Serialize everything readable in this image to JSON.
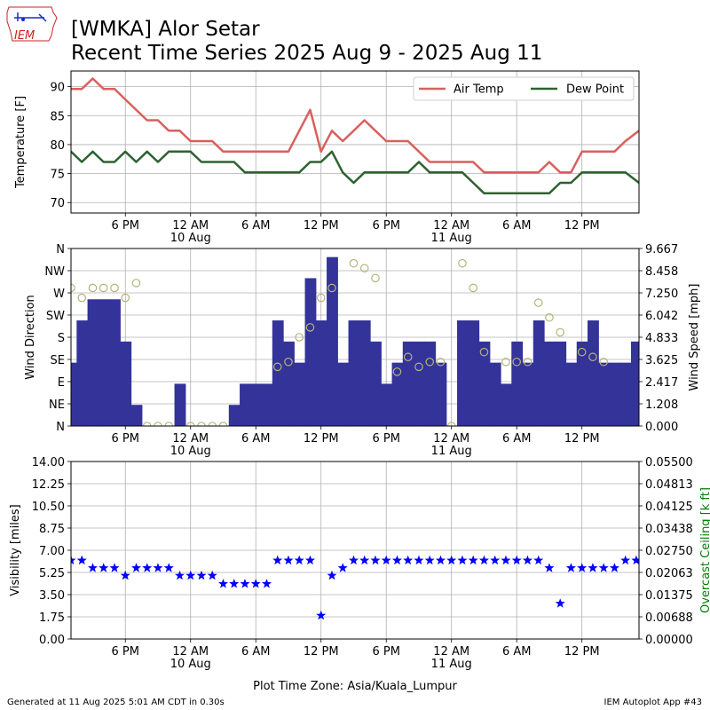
{
  "header": {
    "title_line1": "[WMKA] Alor Setar",
    "title_line2": "Recent Time Series 2025 Aug 9 - 2025 Aug 11",
    "logo_text": "IEM"
  },
  "footer": {
    "generated": "Generated at 11 Aug 2025 5:01 AM CDT in 0.30s",
    "app": "IEM Autoplot App #43",
    "timezone": "Plot Time Zone: Asia/Kuala_Lumpur"
  },
  "colors": {
    "air_temp": "#d9605e",
    "dew_point": "#2e6230",
    "wind_bar": "#333399",
    "wind_dir_marker": "#b4b47a",
    "visibility": "#0000ff",
    "ceiling_label": "#008000",
    "grid": "#b0b0b0"
  },
  "time_axis": {
    "xlim": [
      0,
      52.25
    ],
    "ticks": [
      {
        "t": 5,
        "label": "6 PM",
        "sub": ""
      },
      {
        "t": 11,
        "label": "12 AM",
        "sub": "10 Aug"
      },
      {
        "t": 17,
        "label": "6 AM",
        "sub": ""
      },
      {
        "t": 23,
        "label": "12 PM",
        "sub": ""
      },
      {
        "t": 29,
        "label": "6 PM",
        "sub": ""
      },
      {
        "t": 35,
        "label": "12 AM",
        "sub": "11 Aug"
      },
      {
        "t": 41,
        "label": "6 AM",
        "sub": ""
      },
      {
        "t": 47,
        "label": "12 PM",
        "sub": ""
      }
    ]
  },
  "chart_data": [
    {
      "type": "line",
      "ylabel": "Temperature [F]",
      "ylim": [
        68.2,
        92.7
      ],
      "yticks": [
        70,
        75,
        80,
        85,
        90
      ],
      "grid": true,
      "legend_position": "top-right",
      "series": [
        {
          "name": "Air Temp",
          "x": [
            0,
            1,
            2,
            3,
            4,
            5,
            6,
            7,
            8,
            9,
            10,
            11,
            12,
            13,
            14,
            15,
            16,
            17,
            18,
            19,
            20,
            21,
            22,
            23,
            24,
            25,
            26,
            27,
            28,
            29,
            30,
            31,
            32,
            33,
            34,
            35,
            36,
            37,
            38,
            39,
            40,
            41,
            42,
            43,
            44,
            45,
            46,
            47,
            48,
            49,
            50,
            51,
            52.25
          ],
          "y": [
            89.6,
            89.6,
            91.4,
            89.6,
            89.6,
            87.8,
            86,
            84.2,
            84.2,
            82.4,
            82.4,
            80.6,
            80.6,
            80.6,
            78.8,
            78.8,
            78.8,
            78.8,
            78.8,
            78.8,
            78.8,
            82.4,
            86,
            78.8,
            82.4,
            80.6,
            82.4,
            84.2,
            82.4,
            80.6,
            80.6,
            80.6,
            78.8,
            77,
            77,
            77,
            77,
            77,
            75.2,
            75.2,
            75.2,
            75.2,
            75.2,
            75.2,
            77,
            75.2,
            75.2,
            78.8,
            78.8,
            78.8,
            78.8,
            80.6,
            82.4
          ]
        },
        {
          "name": "Dew Point",
          "x": [
            0,
            1,
            2,
            3,
            4,
            5,
            6,
            7,
            8,
            9,
            10,
            11,
            12,
            13,
            14,
            15,
            16,
            17,
            18,
            19,
            20,
            21,
            22,
            23,
            24,
            25,
            26,
            27,
            28,
            29,
            30,
            31,
            32,
            33,
            34,
            35,
            36,
            37,
            38,
            39,
            40,
            41,
            42,
            43,
            44,
            45,
            46,
            47,
            48,
            49,
            50,
            51,
            52.25
          ],
          "y": [
            78.8,
            77,
            78.8,
            77,
            77,
            78.8,
            77,
            78.8,
            77,
            78.8,
            78.8,
            78.8,
            77,
            77,
            77,
            77,
            75.2,
            75.2,
            75.2,
            75.2,
            75.2,
            75.2,
            77,
            77,
            78.8,
            75.2,
            73.4,
            75.2,
            75.2,
            75.2,
            75.2,
            75.2,
            77,
            75.2,
            75.2,
            75.2,
            75.2,
            73.4,
            71.6,
            71.6,
            71.6,
            71.6,
            71.6,
            71.6,
            71.6,
            73.4,
            73.4,
            75.2,
            75.2,
            75.2,
            75.2,
            75.2,
            73.4
          ]
        }
      ]
    },
    {
      "type": "bar",
      "ylabel": "Wind Direction",
      "ylabel_right": "Wind Speed [mph]",
      "ylim_dir": [
        0,
        360
      ],
      "yticks_dir": [
        {
          "v": 0,
          "label": "N"
        },
        {
          "v": 45,
          "label": "NE"
        },
        {
          "v": 90,
          "label": "E"
        },
        {
          "v": 135,
          "label": "SE"
        },
        {
          "v": 180,
          "label": "S"
        },
        {
          "v": 225,
          "label": "SW"
        },
        {
          "v": 270,
          "label": "W"
        },
        {
          "v": 315,
          "label": "NW"
        },
        {
          "v": 360,
          "label": "N"
        }
      ],
      "ylim_speed": [
        0,
        9.667
      ],
      "yticks_speed": [
        "0.000",
        "1.208",
        "2.417",
        "3.625",
        "4.833",
        "6.042",
        "7.250",
        "8.458",
        "9.667"
      ],
      "grid": true,
      "wind_speed": {
        "name": "Wind Speed",
        "x": [
          0,
          1,
          2,
          3,
          4,
          5,
          6,
          7,
          8,
          9,
          10,
          11,
          12,
          13,
          14,
          15,
          16,
          17,
          18,
          19,
          20,
          21,
          22,
          23,
          24,
          25,
          26,
          27,
          28,
          29,
          30,
          31,
          32,
          33,
          34,
          35,
          36,
          37,
          38,
          39,
          40,
          41,
          42,
          43,
          44,
          45,
          46,
          47,
          48,
          49,
          50,
          51,
          52
        ],
        "values": [
          3.45,
          5.75,
          6.9,
          6.9,
          6.9,
          4.6,
          1.15,
          0,
          0,
          0,
          2.3,
          0,
          0,
          0,
          0,
          1.15,
          2.3,
          2.3,
          2.3,
          5.75,
          4.6,
          3.45,
          8.05,
          5.75,
          9.2,
          3.45,
          5.75,
          5.75,
          4.6,
          2.3,
          3.45,
          4.6,
          4.6,
          4.6,
          3.45,
          0,
          5.75,
          5.75,
          4.6,
          3.45,
          2.3,
          4.6,
          3.45,
          5.75,
          4.6,
          4.6,
          3.45,
          4.6,
          5.75,
          3.45,
          3.45,
          3.45,
          4.6
        ]
      },
      "wind_direction": {
        "name": "Wind Direction",
        "x": [
          0,
          1,
          2,
          3,
          4,
          5,
          6,
          7,
          8,
          9,
          10,
          11,
          12,
          13,
          14,
          15,
          16,
          17,
          18,
          19,
          20,
          21,
          22,
          23,
          24,
          25,
          26,
          27,
          28,
          29,
          30,
          31,
          32,
          33,
          34,
          35,
          36,
          37,
          38,
          39,
          40,
          41,
          42,
          43,
          44,
          45,
          46,
          47,
          48,
          49,
          50,
          51,
          52
        ],
        "values": [
          280,
          260,
          280,
          280,
          280,
          260,
          290,
          0,
          0,
          0,
          null,
          0,
          0,
          0,
          0,
          null,
          null,
          null,
          null,
          120,
          130,
          180,
          200,
          260,
          280,
          null,
          330,
          320,
          300,
          null,
          110,
          140,
          120,
          130,
          130,
          0,
          330,
          280,
          150,
          null,
          130,
          130,
          130,
          250,
          220,
          190,
          null,
          150,
          140,
          130,
          null,
          null,
          null
        ]
      }
    },
    {
      "type": "scatter",
      "ylabel": "Visibility [miles]",
      "ylabel_right": "Overcast Ceiling [k ft]",
      "ylim": [
        0,
        14
      ],
      "yticks": [
        "0.00",
        "1.75",
        "3.50",
        "5.25",
        "7.00",
        "8.75",
        "10.50",
        "12.25",
        "14.00"
      ],
      "ylim_right": [
        0,
        0.055
      ],
      "yticks_right": [
        "0.00000",
        "0.00688",
        "0.01375",
        "0.02063",
        "0.02750",
        "0.03438",
        "0.04125",
        "0.04813",
        "0.05500"
      ],
      "grid": true,
      "series": [
        {
          "name": "Visibility",
          "x": [
            0,
            1,
            2,
            3,
            4,
            5,
            6,
            7,
            8,
            9,
            10,
            11,
            12,
            13,
            14,
            15,
            16,
            17,
            18,
            19,
            20,
            21,
            22,
            23,
            24,
            25,
            26,
            27,
            28,
            29,
            30,
            31,
            32,
            33,
            34,
            35,
            36,
            37,
            38,
            39,
            40,
            41,
            42,
            43,
            44,
            45,
            46,
            47,
            48,
            49,
            50,
            51,
            52
          ],
          "y": [
            6.2,
            6.2,
            5.6,
            5.6,
            5.6,
            5.0,
            5.6,
            5.6,
            5.6,
            5.6,
            5.0,
            5.0,
            5.0,
            5.0,
            4.35,
            4.35,
            4.35,
            4.35,
            4.35,
            6.2,
            6.2,
            6.2,
            6.2,
            1.85,
            5.0,
            5.6,
            6.2,
            6.2,
            6.2,
            6.2,
            6.2,
            6.2,
            6.2,
            6.2,
            6.2,
            6.2,
            6.2,
            6.2,
            6.2,
            6.2,
            6.2,
            6.2,
            6.2,
            6.2,
            5.6,
            2.8,
            5.6,
            5.6,
            5.6,
            5.6,
            5.6,
            6.2,
            6.2
          ]
        }
      ]
    }
  ]
}
